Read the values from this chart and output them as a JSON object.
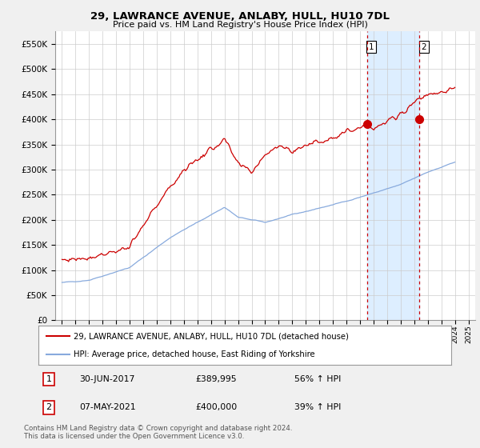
{
  "title": "29, LAWRANCE AVENUE, ANLABY, HULL, HU10 7DL",
  "subtitle": "Price paid vs. HM Land Registry's House Price Index (HPI)",
  "legend_line1": "29, LAWRANCE AVENUE, ANLABY, HULL, HU10 7DL (detached house)",
  "legend_line2": "HPI: Average price, detached house, East Riding of Yorkshire",
  "sale1_date": "30-JUN-2017",
  "sale1_price": "£389,995",
  "sale1_hpi": "56% ↑ HPI",
  "sale2_date": "07-MAY-2021",
  "sale2_price": "£400,000",
  "sale2_hpi": "39% ↑ HPI",
  "footer": "Contains HM Land Registry data © Crown copyright and database right 2024.\nThis data is licensed under the Open Government Licence v3.0.",
  "hpi_color": "#88aadd",
  "price_color": "#cc0000",
  "dashed_line_color": "#cc0000",
  "shade_color": "#ddeeff",
  "ylim": [
    0,
    575000
  ],
  "yticks": [
    0,
    50000,
    100000,
    150000,
    200000,
    250000,
    300000,
    350000,
    400000,
    450000,
    500000,
    550000
  ],
  "background_color": "#f0f0f0",
  "plot_bg_color": "#ffffff",
  "sale1_x": 2017.5,
  "sale1_y": 389995,
  "sale2_x": 2021.37,
  "sale2_y": 400000,
  "xmin": 1995,
  "xmax": 2025
}
